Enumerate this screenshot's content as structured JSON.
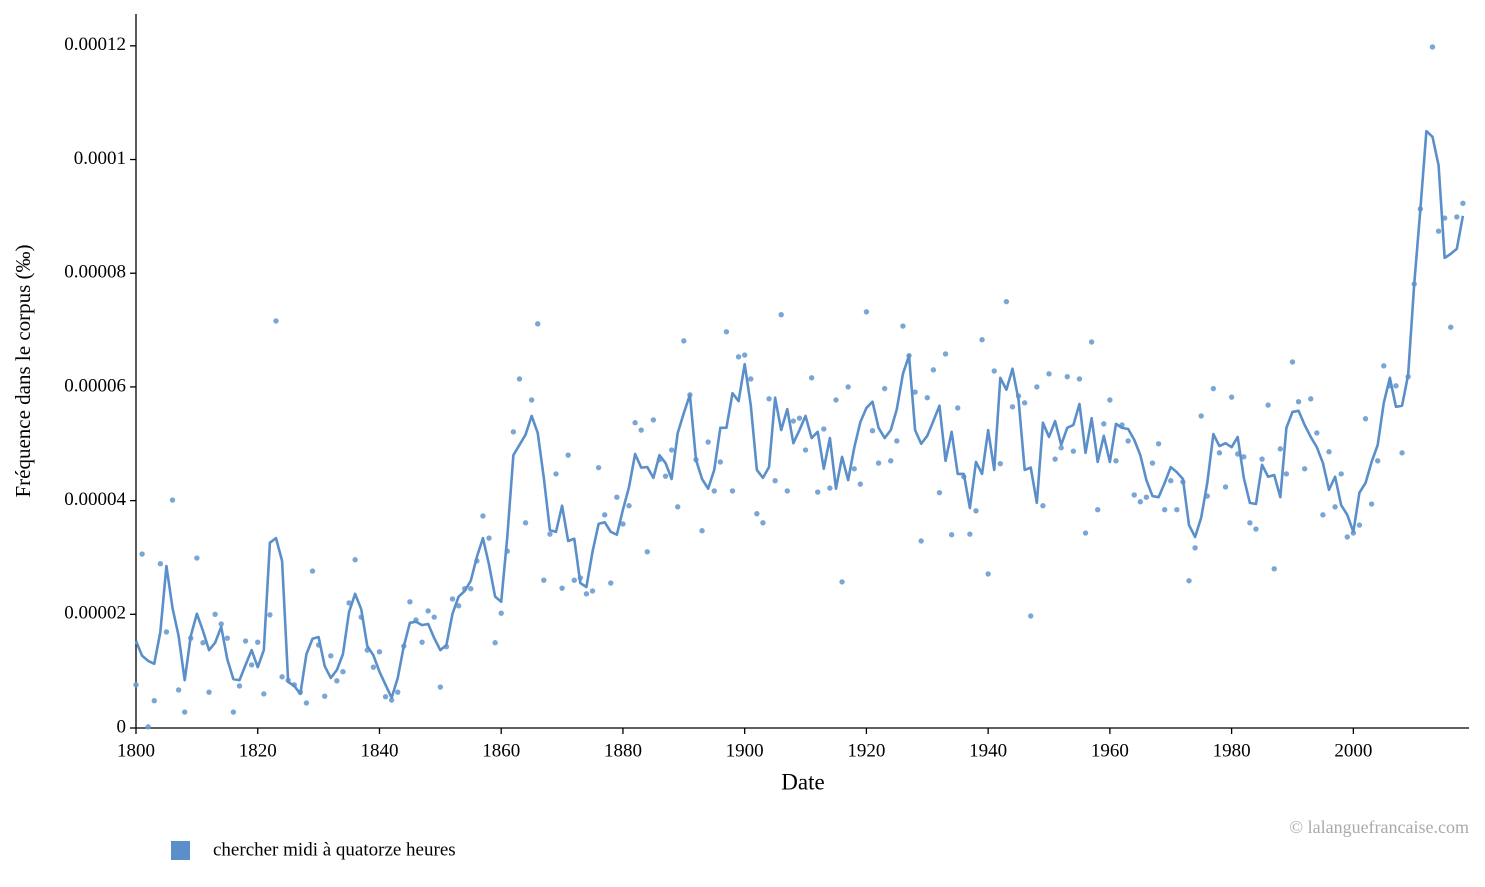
{
  "chart_data": {
    "type": "line",
    "x_label": "Date",
    "y_label": "Fréquence dans le corpus (‰)",
    "credit": "© lalanguefrancaise.com",
    "xlim": [
      1800,
      2019
    ],
    "ylim": [
      0,
      0.0001256
    ],
    "xticks": [
      1800,
      1820,
      1840,
      1860,
      1880,
      1900,
      1920,
      1940,
      1960,
      1980,
      2000
    ],
    "yticks": [
      0,
      2e-05,
      4e-05,
      6e-05,
      8e-05,
      0.0001,
      0.00012
    ],
    "grid": false,
    "legend": "bottom-left",
    "x": [
      1800,
      1801,
      1802,
      1803,
      1804,
      1805,
      1806,
      1807,
      1808,
      1809,
      1810,
      1811,
      1812,
      1813,
      1814,
      1815,
      1816,
      1817,
      1818,
      1819,
      1820,
      1821,
      1822,
      1823,
      1824,
      1825,
      1826,
      1827,
      1828,
      1829,
      1830,
      1831,
      1832,
      1833,
      1834,
      1835,
      1836,
      1837,
      1838,
      1839,
      1840,
      1841,
      1842,
      1843,
      1844,
      1845,
      1846,
      1847,
      1848,
      1849,
      1850,
      1851,
      1852,
      1853,
      1854,
      1855,
      1856,
      1857,
      1858,
      1859,
      1860,
      1861,
      1862,
      1863,
      1864,
      1865,
      1866,
      1867,
      1868,
      1869,
      1870,
      1871,
      1872,
      1873,
      1874,
      1875,
      1876,
      1877,
      1878,
      1879,
      1880,
      1881,
      1882,
      1883,
      1884,
      1885,
      1886,
      1887,
      1888,
      1889,
      1890,
      1891,
      1892,
      1893,
      1894,
      1895,
      1896,
      1897,
      1898,
      1899,
      1900,
      1901,
      1902,
      1903,
      1904,
      1905,
      1906,
      1907,
      1908,
      1909,
      1910,
      1911,
      1912,
      1913,
      1914,
      1915,
      1916,
      1917,
      1918,
      1919,
      1920,
      1921,
      1922,
      1923,
      1924,
      1925,
      1926,
      1927,
      1928,
      1929,
      1930,
      1931,
      1932,
      1933,
      1934,
      1935,
      1936,
      1937,
      1938,
      1939,
      1940,
      1941,
      1942,
      1943,
      1944,
      1945,
      1946,
      1947,
      1948,
      1949,
      1950,
      1951,
      1952,
      1953,
      1954,
      1955,
      1956,
      1957,
      1958,
      1959,
      1960,
      1961,
      1962,
      1963,
      1964,
      1965,
      1966,
      1967,
      1968,
      1969,
      1970,
      1971,
      1972,
      1973,
      1974,
      1975,
      1976,
      1977,
      1978,
      1979,
      1980,
      1981,
      1982,
      1983,
      1984,
      1985,
      1986,
      1987,
      1988,
      1989,
      1990,
      1991,
      1992,
      1993,
      1994,
      1995,
      1996,
      1997,
      1998,
      1999,
      2000,
      2001,
      2002,
      2003,
      2004,
      2005,
      2006,
      2007,
      2008,
      2009,
      2010,
      2011,
      2012,
      2013,
      2014,
      2015,
      2016,
      2017,
      2018
    ],
    "series": [
      {
        "name": "chercher midi à quatorze heures",
        "color": "#5b8fc9",
        "point_color": "#6b9cd2",
        "values": [
          1.53e-05,
          1.27e-05,
          1.18e-05,
          1.13e-05,
          1.69e-05,
          2.85e-05,
          2.11e-05,
          1.62e-05,
          8.4e-06,
          1.62e-05,
          2.01e-05,
          1.71e-05,
          1.37e-05,
          1.5e-05,
          1.78e-05,
          1.21e-05,
          8.6e-06,
          8.4e-06,
          1.11e-05,
          1.37e-05,
          1.07e-05,
          1.37e-05,
          3.26e-05,
          3.34e-05,
          2.94e-05,
          8.1e-06,
          7.4e-06,
          6e-06,
          1.3e-05,
          1.57e-05,
          1.6e-05,
          1.09e-05,
          8.8e-06,
          1.02e-05,
          1.3e-05,
          2.04e-05,
          2.36e-05,
          2.09e-05,
          1.44e-05,
          1.28e-05,
          9.9e-06,
          7.6e-06,
          5.3e-06,
          8.8e-06,
          1.44e-05,
          1.85e-05,
          1.87e-05,
          1.81e-05,
          1.83e-05,
          1.58e-05,
          1.37e-05,
          1.46e-05,
          2.01e-05,
          2.31e-05,
          2.41e-05,
          2.59e-05,
          3.01e-05,
          3.34e-05,
          2.87e-05,
          2.31e-05,
          2.22e-05,
          3.36e-05,
          4.8e-05,
          4.98e-05,
          5.16e-05,
          5.49e-05,
          5.19e-05,
          4.4e-05,
          3.48e-05,
          3.45e-05,
          3.91e-05,
          3.29e-05,
          3.33e-05,
          2.55e-05,
          2.48e-05,
          3.1e-05,
          3.59e-05,
          3.62e-05,
          3.45e-05,
          3.4e-05,
          3.84e-05,
          4.24e-05,
          4.82e-05,
          4.58e-05,
          4.59e-05,
          4.4e-05,
          4.8e-05,
          4.66e-05,
          4.38e-05,
          5.19e-05,
          5.54e-05,
          5.86e-05,
          4.72e-05,
          4.38e-05,
          4.21e-05,
          4.54e-05,
          5.28e-05,
          5.28e-05,
          5.89e-05,
          5.75e-05,
          6.4e-05,
          5.68e-05,
          4.54e-05,
          4.4e-05,
          4.59e-05,
          5.81e-05,
          5.24e-05,
          5.61e-05,
          5.01e-05,
          5.24e-05,
          5.49e-05,
          5.1e-05,
          5.21e-05,
          4.56e-05,
          5.1e-05,
          4.21e-05,
          4.77e-05,
          4.36e-05,
          4.93e-05,
          5.38e-05,
          5.63e-05,
          5.74e-05,
          5.28e-05,
          5.1e-05,
          5.24e-05,
          5.61e-05,
          6.23e-05,
          6.55e-05,
          5.24e-05,
          5e-05,
          5.14e-05,
          5.4e-05,
          5.67e-05,
          4.7e-05,
          5.21e-05,
          4.47e-05,
          4.47e-05,
          3.87e-05,
          4.68e-05,
          4.47e-05,
          5.24e-05,
          4.54e-05,
          6.16e-05,
          5.95e-05,
          6.32e-05,
          5.77e-05,
          4.54e-05,
          4.58e-05,
          3.96e-05,
          5.37e-05,
          5.12e-05,
          5.4e-05,
          4.98e-05,
          5.28e-05,
          5.33e-05,
          5.7e-05,
          4.84e-05,
          5.45e-05,
          4.68e-05,
          5.14e-05,
          4.68e-05,
          5.35e-05,
          5.28e-05,
          5.26e-05,
          5.07e-05,
          4.8e-05,
          4.36e-05,
          4.08e-05,
          4.06e-05,
          4.31e-05,
          4.59e-05,
          4.5e-05,
          4.38e-05,
          3.57e-05,
          3.36e-05,
          3.7e-05,
          4.31e-05,
          5.17e-05,
          4.96e-05,
          5.01e-05,
          4.94e-05,
          5.12e-05,
          4.4e-05,
          3.96e-05,
          3.94e-05,
          4.63e-05,
          4.42e-05,
          4.45e-05,
          4.06e-05,
          5.28e-05,
          5.56e-05,
          5.58e-05,
          5.33e-05,
          5.12e-05,
          4.94e-05,
          4.66e-05,
          4.19e-05,
          4.42e-05,
          3.92e-05,
          3.75e-05,
          3.45e-05,
          4.14e-05,
          4.31e-05,
          4.68e-05,
          4.98e-05,
          5.72e-05,
          6.16e-05,
          5.65e-05,
          5.67e-05,
          6.21e-05,
          7.81e-05,
          9.11e-05,
          0.000105,
          0.000104,
          9.9e-05,
          8.27e-05,
          8.34e-05,
          8.43e-05,
          9.01e-05
        ],
        "points": [
          7.6e-06,
          3.06e-05,
          2e-07,
          4.8e-06,
          2.89e-05,
          1.69e-05,
          4.01e-05,
          6.7e-06,
          2.8e-06,
          1.58e-05,
          2.99e-05,
          1.5e-05,
          6.3e-06,
          2e-05,
          1.83e-05,
          1.58e-05,
          2.8e-06,
          7.4e-06,
          1.53e-05,
          1.11e-05,
          1.51e-05,
          6e-06,
          1.99e-05,
          7.16e-05,
          9e-06,
          8.4e-06,
          7.6e-06,
          6.3e-06,
          4.4e-06,
          2.76e-05,
          1.46e-05,
          5.6e-06,
          1.27e-05,
          8.3e-06,
          9.9e-06,
          2.2e-05,
          2.96e-05,
          1.95e-05,
          1.37e-05,
          1.07e-05,
          1.34e-05,
          5.5e-06,
          4.9e-06,
          6.3e-06,
          1.44e-05,
          2.22e-05,
          1.9e-05,
          1.51e-05,
          2.06e-05,
          1.95e-05,
          7.2e-06,
          1.43e-05,
          2.27e-05,
          2.15e-05,
          2.45e-05,
          2.45e-05,
          2.94e-05,
          3.73e-05,
          3.34e-05,
          1.5e-05,
          2.02e-05,
          3.11e-05,
          5.21e-05,
          6.14e-05,
          3.61e-05,
          5.77e-05,
          7.11e-05,
          2.6e-05,
          3.41e-05,
          4.47e-05,
          2.46e-05,
          4.8e-05,
          2.6e-05,
          2.64e-05,
          2.36e-05,
          2.41e-05,
          4.58e-05,
          3.75e-05,
          2.55e-05,
          4.06e-05,
          3.59e-05,
          3.91e-05,
          5.37e-05,
          5.24e-05,
          3.1e-05,
          5.42e-05,
          4.72e-05,
          4.43e-05,
          4.89e-05,
          3.89e-05,
          6.81e-05,
          5.86e-05,
          4.72e-05,
          3.47e-05,
          5.03e-05,
          4.17e-05,
          4.68e-05,
          6.97e-05,
          4.17e-05,
          6.53e-05,
          6.56e-05,
          6.14e-05,
          3.77e-05,
          3.61e-05,
          5.79e-05,
          4.35e-05,
          7.27e-05,
          4.17e-05,
          5.4e-05,
          5.45e-05,
          4.89e-05,
          6.16e-05,
          4.15e-05,
          5.26e-05,
          4.22e-05,
          5.77e-05,
          2.57e-05,
          6e-05,
          4.56e-05,
          4.29e-05,
          7.32e-05,
          5.23e-05,
          4.66e-05,
          5.97e-05,
          4.7e-05,
          5.05e-05,
          7.07e-05,
          6.55e-05,
          5.91e-05,
          3.29e-05,
          5.81e-05,
          6.3e-05,
          4.14e-05,
          6.58e-05,
          3.4e-05,
          5.63e-05,
          4.42e-05,
          3.41e-05,
          3.82e-05,
          6.83e-05,
          2.71e-05,
          6.28e-05,
          4.65e-05,
          7.5e-05,
          5.65e-05,
          5.84e-05,
          5.72e-05,
          1.97e-05,
          6e-05,
          3.91e-05,
          6.23e-05,
          4.73e-05,
          4.93e-05,
          6.18e-05,
          4.87e-05,
          6.14e-05,
          3.43e-05,
          6.79e-05,
          3.84e-05,
          5.35e-05,
          5.77e-05,
          4.7e-05,
          5.33e-05,
          5.05e-05,
          4.1e-05,
          3.98e-05,
          4.06e-05,
          4.66e-05,
          5e-05,
          3.84e-05,
          4.35e-05,
          3.84e-05,
          4.33e-05,
          2.59e-05,
          3.17e-05,
          5.49e-05,
          4.08e-05,
          5.97e-05,
          4.84e-05,
          4.24e-05,
          5.82e-05,
          4.82e-05,
          4.77e-05,
          3.61e-05,
          3.5e-05,
          4.73e-05,
          5.68e-05,
          2.8e-05,
          4.91e-05,
          4.47e-05,
          6.44e-05,
          5.74e-05,
          4.56e-05,
          5.79e-05,
          5.19e-05,
          3.75e-05,
          4.86e-05,
          3.89e-05,
          4.47e-05,
          3.36e-05,
          3.43e-05,
          3.57e-05,
          5.44e-05,
          3.94e-05,
          4.7e-05,
          6.37e-05,
          6.02e-05,
          6.02e-05,
          4.84e-05,
          6.18e-05,
          7.81e-05,
          9.13e-05,
          null,
          0.0001198,
          8.74e-05,
          8.97e-05,
          7.05e-05,
          8.99e-05,
          9.23e-05
        ]
      }
    ]
  }
}
